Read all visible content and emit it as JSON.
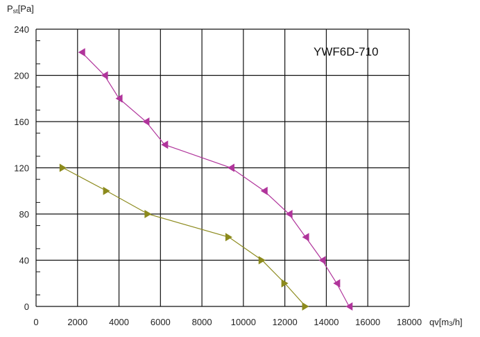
{
  "chart_data": {
    "type": "line",
    "model_label": "YWF6D-710",
    "ylabel": {
      "main": "P",
      "sub": "st",
      "unit": "[Pa]"
    },
    "xlabel": {
      "main": "qv",
      "unit_open": "[m",
      "unit_sub": "3",
      "unit_close": "/h]"
    },
    "xlim": [
      0,
      18000
    ],
    "ylim": [
      0,
      240
    ],
    "x_ticks": [
      0,
      2000,
      4000,
      6000,
      8000,
      10000,
      12000,
      14000,
      16000,
      18000
    ],
    "y_ticks": [
      0,
      40,
      80,
      120,
      160,
      200,
      240
    ],
    "grid": true,
    "series": [
      {
        "color": "#b0349b",
        "marker": "left-triangle",
        "points": [
          [
            2200,
            220
          ],
          [
            3300,
            200
          ],
          [
            4000,
            180
          ],
          [
            5300,
            160
          ],
          [
            6200,
            140
          ],
          [
            9400,
            120
          ],
          [
            11000,
            100
          ],
          [
            12200,
            80
          ],
          [
            13000,
            60
          ],
          [
            13800,
            40
          ],
          [
            14500,
            20
          ],
          [
            15100,
            0
          ]
        ]
      },
      {
        "color": "#8c8a1c",
        "marker": "right-triangle",
        "points": [
          [
            1300,
            120
          ],
          [
            3400,
            100
          ],
          [
            5400,
            80
          ],
          [
            9300,
            60
          ],
          [
            10900,
            40
          ],
          [
            12000,
            20
          ],
          [
            13000,
            0
          ]
        ]
      }
    ]
  }
}
